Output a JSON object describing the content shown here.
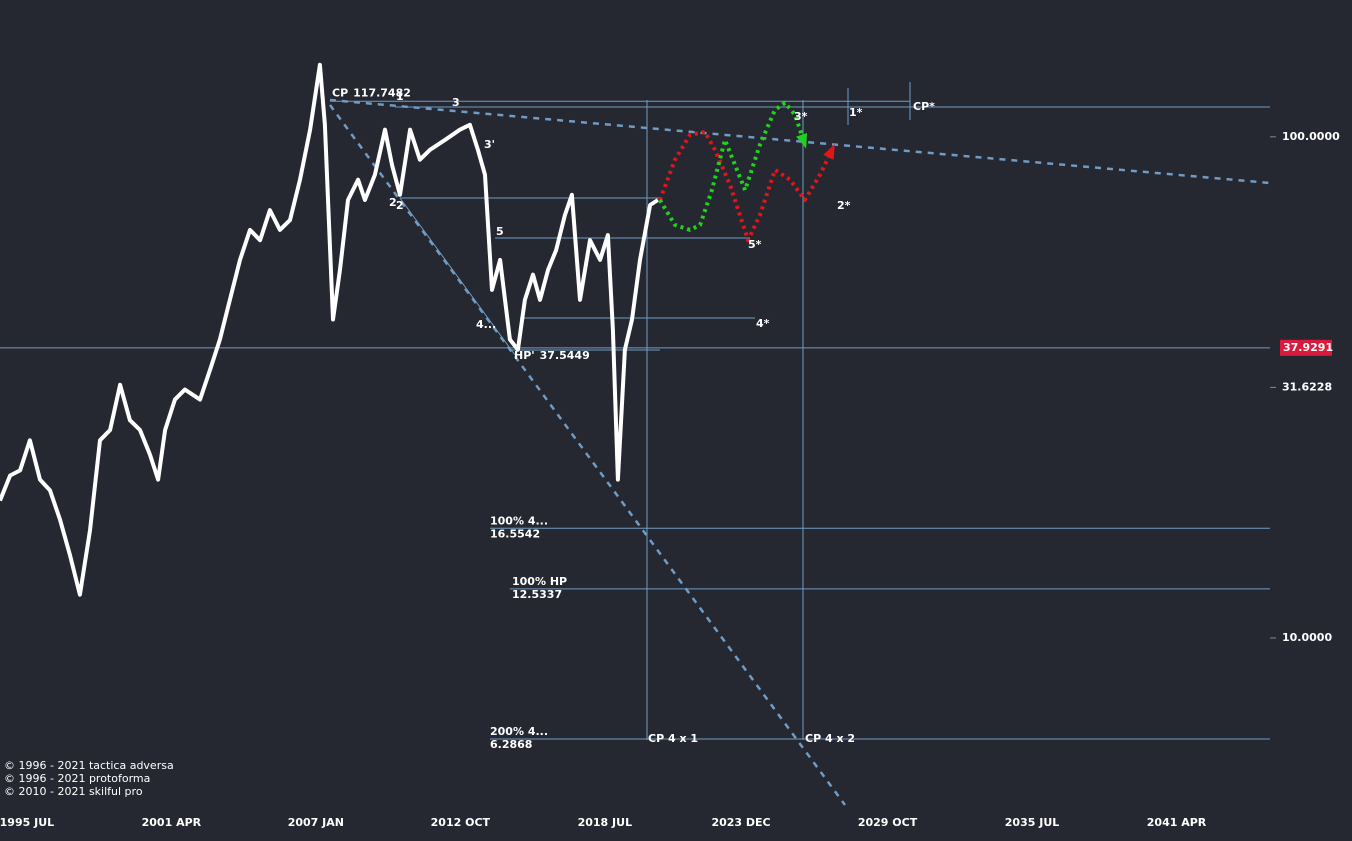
{
  "chart_data": {
    "type": "line",
    "log_scale": true,
    "xlim": [
      1994.43,
      2044.97
    ],
    "xticks": [
      {
        "value": 1995.5,
        "label": "1995 JUL"
      },
      {
        "value": 2001.25,
        "label": "2001 APR"
      },
      {
        "value": 2007.0,
        "label": "2007 JAN"
      },
      {
        "value": 2012.75,
        "label": "2012 OCT"
      },
      {
        "value": 2018.5,
        "label": "2018 JUL"
      },
      {
        "value": 2023.92,
        "label": "2023 DEC"
      },
      {
        "value": 2029.75,
        "label": "2029 OCT"
      },
      {
        "value": 2035.5,
        "label": "2035 JUL"
      },
      {
        "value": 2041.25,
        "label": "2041 APR"
      }
    ],
    "ylim": [
      4.75,
      187.5
    ],
    "yticks": [
      {
        "value": 100,
        "label": "100.0000"
      },
      31.6228,
      {
        "value": 10,
        "label": "10.0000"
      }
    ],
    "current_price": 37.9291,
    "current_color": "#d81b3c",
    "series": [
      {
        "color": "#ffffff",
        "x": [
          1994.43,
          1994.83,
          1995.23,
          1995.62,
          1996.02,
          1996.42,
          1996.82,
          1997.22,
          1997.61,
          1998.01,
          1998.41,
          1998.81,
          1999.21,
          1999.6,
          2000.0,
          2000.4,
          2000.72,
          2001.0,
          2001.39,
          2001.79,
          2002.39,
          2002.79,
          2003.18,
          2003.58,
          2003.98,
          2004.38,
          2004.78,
          2005.17,
          2005.57,
          2005.97,
          2006.37,
          2006.77,
          2007.16,
          2007.36,
          2007.68,
          2007.96,
          2008.28,
          2008.68,
          2008.95,
          2009.35,
          2009.75,
          2010.03,
          2010.35,
          2010.75,
          2011.14,
          2011.54,
          2012.14,
          2012.73,
          2013.13,
          2013.45,
          2013.73,
          2014.01,
          2014.33,
          2014.72,
          2015.04,
          2015.32,
          2015.64,
          2015.92,
          2016.24,
          2016.56,
          2016.91,
          2017.19,
          2017.51,
          2017.91,
          2018.31,
          2018.62,
          2018.82,
          2019.02,
          2019.3,
          2019.58,
          2019.9,
          2020.3,
          2020.61
        ],
        "values": [
          18.8,
          21.1,
          21.6,
          24.8,
          20.7,
          19.7,
          17.2,
          14.6,
          12.2,
          16.4,
          24.8,
          26.0,
          32.0,
          27.2,
          26.0,
          23.2,
          20.7,
          26.0,
          29.9,
          31.3,
          29.9,
          34.3,
          39.4,
          47.3,
          56.8,
          65.2,
          62.2,
          71.4,
          65.2,
          68.2,
          82.1,
          103.3,
          139.2,
          105.7,
          43.2,
          54.3,
          74.8,
          82.1,
          74.8,
          84.0,
          103.3,
          87.9,
          76.6,
          103.3,
          90.0,
          94.2,
          98.6,
          103.3,
          105.7,
          94.2,
          84.0,
          49.5,
          56.8,
          39.4,
          37.6,
          47.3,
          53.1,
          47.3,
          54.3,
          59.4,
          69.8,
          76.6,
          47.3,
          62.2,
          56.8,
          63.7,
          41.2,
          20.7,
          37.6,
          43.2,
          56.8,
          73.1,
          74.8
        ]
      }
    ],
    "projections": [
      {
        "color": "#e0161b",
        "x": [
          2020.69,
          2021.29,
          2021.89,
          2022.48,
          2022.88,
          2023.48,
          2024.2,
          2024.67,
          2025.27,
          2025.87,
          2026.46,
          2027.06,
          2027.58
        ],
        "values": [
          74.8,
          90.0,
          100.9,
          102.3,
          94.2,
          80.2,
          62.2,
          69.8,
          85.9,
          82.1,
          74.8,
          84.0,
          95.1
        ]
      },
      {
        "color": "#22d11e",
        "x": [
          2020.69,
          2021.29,
          2021.89,
          2022.29,
          2022.76,
          2023.28,
          2023.68,
          2024.08,
          2024.67,
          2025.27,
          2025.67,
          2026.07,
          2026.46
        ],
        "values": [
          74.8,
          66.7,
          65.2,
          66.7,
          78.3,
          98.6,
          87.9,
          78.3,
          96.4,
          113.2,
          116.9,
          110.6,
          96.4
        ]
      }
    ],
    "levels": [
      {
        "title": "CP",
        "value": 117.7482,
        "from": 2007.56,
        "to": 2030.64
      },
      {
        "title": "HP'",
        "value": 37.5449,
        "from": 2014.72,
        "to": 2020.69
      },
      {
        "title": "100%  4...",
        "value": 16.5542,
        "from": 2013.93,
        "to": 2044.97
      },
      {
        "title": "100% HP",
        "value": 12.5337,
        "from": 2014.72,
        "to": 2044.97
      },
      {
        "title": "200%  4...",
        "value": 6.2868,
        "from": 2013.93,
        "to": 2044.97
      }
    ],
    "annotations": [
      "1",
      "3",
      "3'",
      "2",
      "2",
      "5",
      "4...",
      "1*",
      "3*",
      "CP*",
      "2*",
      "5*",
      "4*",
      "CP 4 x 1",
      "CP 4 x 2"
    ],
    "copyright": [
      "© 1996 - 2021 tactica adversa",
      "© 1996 - 2021 protoforma",
      "© 2010 - 2021 skilful pro"
    ]
  }
}
